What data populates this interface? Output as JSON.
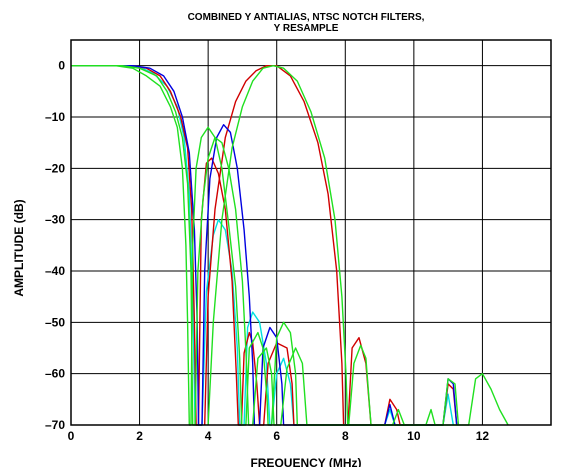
{
  "chart_data": {
    "type": "line",
    "title_lines": [
      "COMBINED Y ANTIALIAS, NTSC NOTCH FILTERS,",
      "Y RESAMPLE"
    ],
    "xlabel": "FREQUENCY (MHz)",
    "ylabel": "AMPLITUDE (dB)",
    "xlim": [
      0,
      14
    ],
    "ylim": [
      -70,
      5
    ],
    "x_ticks": [
      0,
      2,
      4,
      6,
      8,
      10,
      12
    ],
    "y_ticks": [
      0,
      -10,
      -20,
      -30,
      -40,
      -50,
      -60,
      -70
    ],
    "x_tick_labels": [
      "0",
      "2",
      "4",
      "6",
      "8",
      "10",
      "12"
    ],
    "y_tick_labels": [
      "0",
      "–10",
      "–20",
      "–30",
      "–40",
      "–50",
      "–60",
      "–70"
    ],
    "grid": true,
    "series": [
      {
        "color": "#00e0e0",
        "points": [
          [
            0,
            0
          ],
          [
            1.5,
            0
          ],
          [
            2,
            -0.3
          ],
          [
            2.4,
            -1.5
          ],
          [
            2.8,
            -4
          ],
          [
            3.1,
            -8
          ],
          [
            3.3,
            -14
          ],
          [
            3.45,
            -25
          ],
          [
            3.55,
            -45
          ],
          [
            3.62,
            -70
          ],
          [
            3.82,
            -70
          ],
          [
            3.95,
            -44
          ],
          [
            4.15,
            -33
          ],
          [
            4.3,
            -30
          ],
          [
            4.5,
            -32
          ],
          [
            4.7,
            -40
          ],
          [
            4.85,
            -55
          ],
          [
            4.92,
            -70
          ],
          [
            5.05,
            -70
          ],
          [
            5.15,
            -51
          ],
          [
            5.3,
            -48
          ],
          [
            5.5,
            -50
          ],
          [
            5.7,
            -58
          ],
          [
            5.8,
            -70
          ],
          [
            5.85,
            -70
          ],
          [
            6.0,
            -60
          ],
          [
            6.2,
            -57
          ],
          [
            6.4,
            -62
          ],
          [
            6.5,
            -70
          ],
          [
            9.15,
            -70
          ],
          [
            9.3,
            -67
          ],
          [
            9.45,
            -70
          ],
          [
            10.85,
            -70
          ],
          [
            11.0,
            -64
          ],
          [
            11.15,
            -70
          ]
        ]
      },
      {
        "color": "#d00000",
        "points": [
          [
            0,
            0
          ],
          [
            1.8,
            0
          ],
          [
            2.2,
            -0.5
          ],
          [
            2.6,
            -2
          ],
          [
            2.9,
            -5
          ],
          [
            3.2,
            -10
          ],
          [
            3.4,
            -16
          ],
          [
            3.52,
            -28
          ],
          [
            3.6,
            -50
          ],
          [
            3.65,
            -70
          ],
          [
            3.72,
            -70
          ],
          [
            3.8,
            -30
          ],
          [
            3.95,
            -19
          ],
          [
            4.1,
            -18
          ],
          [
            4.3,
            -21
          ],
          [
            4.5,
            -28
          ],
          [
            4.7,
            -42
          ],
          [
            4.82,
            -60
          ],
          [
            4.88,
            -70
          ],
          [
            4.97,
            -70
          ],
          [
            5.05,
            -56
          ],
          [
            5.2,
            -52
          ],
          [
            5.3,
            -54
          ],
          [
            5.42,
            -62
          ],
          [
            5.5,
            -70
          ],
          [
            5.62,
            -70
          ],
          [
            5.75,
            -58
          ],
          [
            6.0,
            -54
          ],
          [
            6.3,
            -55
          ],
          [
            6.45,
            -62
          ],
          [
            6.5,
            -70
          ],
          [
            9.15,
            -70
          ],
          [
            9.3,
            -65
          ],
          [
            9.5,
            -67
          ],
          [
            9.6,
            -70
          ],
          [
            10.85,
            -70
          ],
          [
            11.0,
            -62
          ],
          [
            11.15,
            -63
          ],
          [
            11.25,
            -70
          ]
        ]
      },
      {
        "color": "#d00000",
        "points": [
          [
            3.9,
            -70
          ],
          [
            4.0,
            -45
          ],
          [
            4.2,
            -28
          ],
          [
            4.5,
            -14
          ],
          [
            4.8,
            -7
          ],
          [
            5.1,
            -3
          ],
          [
            5.4,
            -1
          ],
          [
            5.7,
            0
          ],
          [
            6.0,
            0
          ],
          [
            6.4,
            -2
          ],
          [
            6.8,
            -7
          ],
          [
            7.2,
            -15
          ],
          [
            7.5,
            -25
          ],
          [
            7.75,
            -40
          ],
          [
            7.9,
            -58
          ],
          [
            7.95,
            -70
          ],
          [
            8.08,
            -70
          ],
          [
            8.2,
            -55
          ],
          [
            8.4,
            -53
          ],
          [
            8.6,
            -58
          ],
          [
            8.75,
            -70
          ]
        ]
      },
      {
        "color": "#0000e0",
        "points": [
          [
            0,
            0
          ],
          [
            1.8,
            0
          ],
          [
            2.3,
            -0.5
          ],
          [
            2.7,
            -2
          ],
          [
            3.0,
            -5
          ],
          [
            3.25,
            -10
          ],
          [
            3.45,
            -17
          ],
          [
            3.6,
            -32
          ],
          [
            3.68,
            -50
          ],
          [
            3.72,
            -70
          ],
          [
            3.82,
            -70
          ],
          [
            3.9,
            -40
          ],
          [
            4.05,
            -22
          ],
          [
            4.25,
            -14
          ],
          [
            4.45,
            -11.5
          ],
          [
            4.65,
            -13
          ],
          [
            4.85,
            -20
          ],
          [
            5.05,
            -32
          ],
          [
            5.2,
            -45
          ],
          [
            5.3,
            -58
          ],
          [
            5.35,
            -70
          ],
          [
            5.5,
            -70
          ],
          [
            5.6,
            -55
          ],
          [
            5.8,
            -51
          ],
          [
            6.0,
            -53
          ],
          [
            6.15,
            -62
          ],
          [
            6.2,
            -70
          ],
          [
            9.15,
            -70
          ],
          [
            9.3,
            -66
          ],
          [
            9.45,
            -70
          ],
          [
            10.85,
            -70
          ],
          [
            11.0,
            -61
          ],
          [
            11.15,
            -62
          ],
          [
            11.25,
            -70
          ]
        ]
      },
      {
        "color": "#20e020",
        "points": [
          [
            0,
            0
          ],
          [
            1.3,
            0
          ],
          [
            1.8,
            -0.5
          ],
          [
            2.2,
            -2
          ],
          [
            2.6,
            -4
          ],
          [
            2.9,
            -8
          ],
          [
            3.1,
            -12
          ],
          [
            3.25,
            -20
          ],
          [
            3.35,
            -35
          ],
          [
            3.4,
            -50
          ],
          [
            3.45,
            -70
          ],
          [
            3.5,
            -70
          ],
          [
            3.55,
            -35
          ],
          [
            3.65,
            -20
          ],
          [
            3.8,
            -14
          ],
          [
            4.0,
            -12
          ],
          [
            4.2,
            -14
          ],
          [
            4.4,
            -20
          ],
          [
            4.6,
            -31
          ],
          [
            4.8,
            -43
          ],
          [
            4.92,
            -57
          ],
          [
            4.98,
            -70
          ],
          [
            5.1,
            -70
          ],
          [
            5.2,
            -55
          ],
          [
            5.45,
            -52
          ],
          [
            5.6,
            -55
          ],
          [
            5.72,
            -65
          ],
          [
            5.75,
            -70
          ],
          [
            5.85,
            -70
          ],
          [
            6.0,
            -53
          ],
          [
            6.2,
            -50
          ],
          [
            6.4,
            -52
          ],
          [
            6.55,
            -60
          ],
          [
            6.6,
            -70
          ],
          [
            10.35,
            -70
          ],
          [
            10.5,
            -67
          ],
          [
            10.62,
            -70
          ],
          [
            10.85,
            -70
          ],
          [
            11.0,
            -61
          ],
          [
            11.2,
            -62
          ],
          [
            11.3,
            -70
          ]
        ]
      },
      {
        "color": "#20e020",
        "points": [
          [
            0,
            0
          ],
          [
            1.5,
            0
          ],
          [
            2.0,
            -0.5
          ],
          [
            2.5,
            -2
          ],
          [
            2.8,
            -5
          ],
          [
            3.05,
            -9
          ],
          [
            3.25,
            -14
          ],
          [
            3.4,
            -23
          ],
          [
            3.5,
            -40
          ],
          [
            3.55,
            -70
          ],
          [
            3.62,
            -70
          ],
          [
            3.7,
            -40
          ],
          [
            3.85,
            -26
          ],
          [
            4.0,
            -18
          ],
          [
            4.2,
            -14
          ],
          [
            4.4,
            -15
          ],
          [
            4.6,
            -20
          ],
          [
            4.8,
            -28
          ],
          [
            5.0,
            -42
          ],
          [
            5.12,
            -58
          ],
          [
            5.18,
            -70
          ],
          [
            5.3,
            -70
          ],
          [
            5.45,
            -57
          ],
          [
            5.7,
            -55
          ],
          [
            5.85,
            -60
          ],
          [
            5.92,
            -70
          ],
          [
            6.12,
            -70
          ],
          [
            6.3,
            -59
          ],
          [
            6.55,
            -55
          ],
          [
            6.75,
            -58
          ],
          [
            6.88,
            -70
          ],
          [
            9.38,
            -70
          ],
          [
            9.55,
            -67
          ],
          [
            9.72,
            -70
          ]
        ]
      },
      {
        "color": "#20e020",
        "points": [
          [
            4.0,
            -70
          ],
          [
            4.15,
            -50
          ],
          [
            4.4,
            -30
          ],
          [
            4.7,
            -16
          ],
          [
            5.0,
            -8
          ],
          [
            5.3,
            -3
          ],
          [
            5.6,
            -0.5
          ],
          [
            5.9,
            0
          ],
          [
            6.2,
            -0.5
          ],
          [
            6.6,
            -3
          ],
          [
            7.0,
            -9
          ],
          [
            7.4,
            -18
          ],
          [
            7.7,
            -30
          ],
          [
            7.9,
            -45
          ],
          [
            8.02,
            -60
          ],
          [
            8.07,
            -70
          ],
          [
            8.1,
            -70
          ],
          [
            8.25,
            -58
          ],
          [
            8.45,
            -54.5
          ],
          [
            8.6,
            -57
          ],
          [
            8.75,
            -70
          ],
          [
            11.6,
            -70
          ],
          [
            11.8,
            -61
          ],
          [
            12.0,
            -60
          ],
          [
            12.25,
            -63
          ],
          [
            12.5,
            -67
          ],
          [
            12.75,
            -70
          ]
        ]
      }
    ]
  }
}
